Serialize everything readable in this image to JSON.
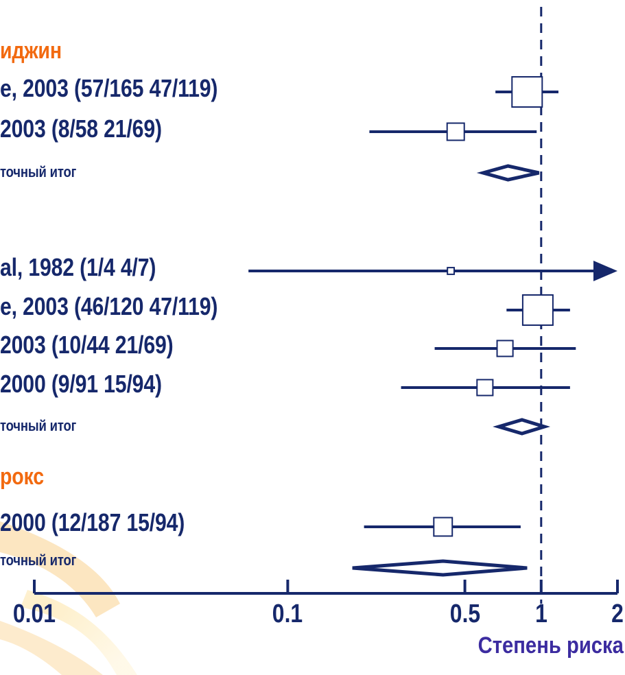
{
  "chart_data": {
    "type": "forest",
    "xlabel": "Степень риска",
    "xscale": "log",
    "xlim": [
      0.01,
      2
    ],
    "xticks": [
      {
        "value": 0.01,
        "label": "0.01"
      },
      {
        "value": 0.1,
        "label": "0.1"
      },
      {
        "value": 0.5,
        "label": "0.5"
      },
      {
        "value": 1,
        "label": "1"
      },
      {
        "value": 2,
        "label": "2"
      }
    ],
    "reference_line": 1,
    "colors": {
      "primary": "#16286b",
      "group": "#f26a10",
      "xlabel": "#3c2ca0"
    },
    "rows": [
      {
        "kind": "group",
        "label": "иджин"
      },
      {
        "kind": "study",
        "label": "e, 2003 (57/165 47/119)",
        "est": 0.88,
        "lo": 0.66,
        "hi": 1.17,
        "weight": 1.0
      },
      {
        "kind": "study",
        "label": "2003 (8/58 21/69)",
        "est": 0.46,
        "lo": 0.21,
        "hi": 0.96,
        "weight": 0.5
      },
      {
        "kind": "subtotal",
        "label": "точный итог",
        "est": 0.74,
        "lo": 0.59,
        "hi": 0.98
      },
      {
        "kind": "spacer"
      },
      {
        "kind": "study",
        "label": "al, 1982 (1/4 4/7)",
        "est": 0.44,
        "lo": 0.07,
        "hi": 2.4,
        "weight": 0.1,
        "arrow_right": true
      },
      {
        "kind": "study",
        "label": "e, 2003 (46/120 47/119)",
        "est": 0.97,
        "lo": 0.73,
        "hi": 1.3,
        "weight": 1.0
      },
      {
        "kind": "study",
        "label": "2003 (10/44 21/69)",
        "est": 0.72,
        "lo": 0.38,
        "hi": 1.37,
        "weight": 0.45
      },
      {
        "kind": "study",
        "label": "2000 (9/91 15/94)",
        "est": 0.6,
        "lo": 0.28,
        "hi": 1.3,
        "weight": 0.45
      },
      {
        "kind": "subtotal",
        "label": "точный итог",
        "est": 0.84,
        "lo": 0.68,
        "hi": 1.03
      },
      {
        "kind": "group",
        "label": "рокс"
      },
      {
        "kind": "study",
        "label": "2000 (12/187 15/94)",
        "est": 0.41,
        "lo": 0.2,
        "hi": 0.83,
        "weight": 0.55
      },
      {
        "kind": "subtotal",
        "label": "точный итог",
        "est": 0.41,
        "lo": 0.18,
        "hi": 0.88
      }
    ]
  }
}
